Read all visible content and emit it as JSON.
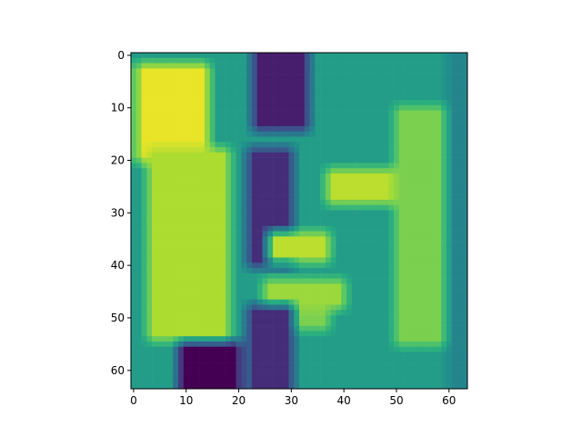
{
  "chart_data": {
    "type": "heatmap",
    "title": "",
    "xlabel": "",
    "ylabel": "",
    "grid": false,
    "legend": "none",
    "colormap": "viridis",
    "matrix_shape": [
      64,
      64
    ],
    "xlim": [
      -0.5,
      63.5
    ],
    "ylim": [
      63.5,
      -0.5
    ],
    "xticks": [
      0,
      10,
      20,
      30,
      40,
      50,
      60
    ],
    "yticks": [
      0,
      10,
      20,
      30,
      40,
      50,
      60
    ],
    "xtick_labels": [
      "0",
      "10",
      "20",
      "30",
      "40",
      "50",
      "60"
    ],
    "ytick_labels": [
      "0",
      "10",
      "20",
      "30",
      "40",
      "50",
      "60"
    ],
    "value_range": [
      0,
      1
    ],
    "approx_regions": [
      {
        "rows": [
          0,
          63
        ],
        "cols": [
          0,
          63
        ],
        "value": 0.55,
        "note": "teal background"
      },
      {
        "rows": [
          2,
          20
        ],
        "cols": [
          1,
          14
        ],
        "value": 0.97,
        "note": "bright yellow upper-left"
      },
      {
        "rows": [
          18,
          54
        ],
        "cols": [
          3,
          18
        ],
        "value": 0.88,
        "note": "yellow-green left band"
      },
      {
        "rows": [
          55,
          63
        ],
        "cols": [
          9,
          20
        ],
        "value": 0.0,
        "note": "dark block lower-left"
      },
      {
        "rows": [
          0,
          14
        ],
        "cols": [
          23,
          33
        ],
        "value": 0.1,
        "note": "dark strands top"
      },
      {
        "rows": [
          18,
          40
        ],
        "cols": [
          22,
          30
        ],
        "value": 0.15,
        "note": "dark cheek region"
      },
      {
        "rows": [
          22,
          28
        ],
        "cols": [
          37,
          50
        ],
        "value": 0.9,
        "note": "bright eye region"
      },
      {
        "rows": [
          34,
          39
        ],
        "cols": [
          26,
          37
        ],
        "value": 0.9,
        "note": "bright nose ridge"
      },
      {
        "rows": [
          43,
          48
        ],
        "cols": [
          25,
          40
        ],
        "value": 0.85,
        "note": "bright lip band"
      },
      {
        "rows": [
          49,
          52
        ],
        "cols": [
          28,
          37
        ],
        "value": 0.8,
        "note": "lower lip"
      },
      {
        "rows": [
          48,
          63
        ],
        "cols": [
          22,
          30
        ],
        "value": 0.15,
        "note": "dark chin shadow"
      },
      {
        "rows": [
          10,
          55
        ],
        "cols": [
          50,
          60
        ],
        "value": 0.8,
        "note": "yellow-green right band"
      },
      {
        "rows": [
          0,
          63
        ],
        "cols": [
          60,
          63
        ],
        "value": 0.45,
        "note": "teal right edge"
      }
    ]
  }
}
